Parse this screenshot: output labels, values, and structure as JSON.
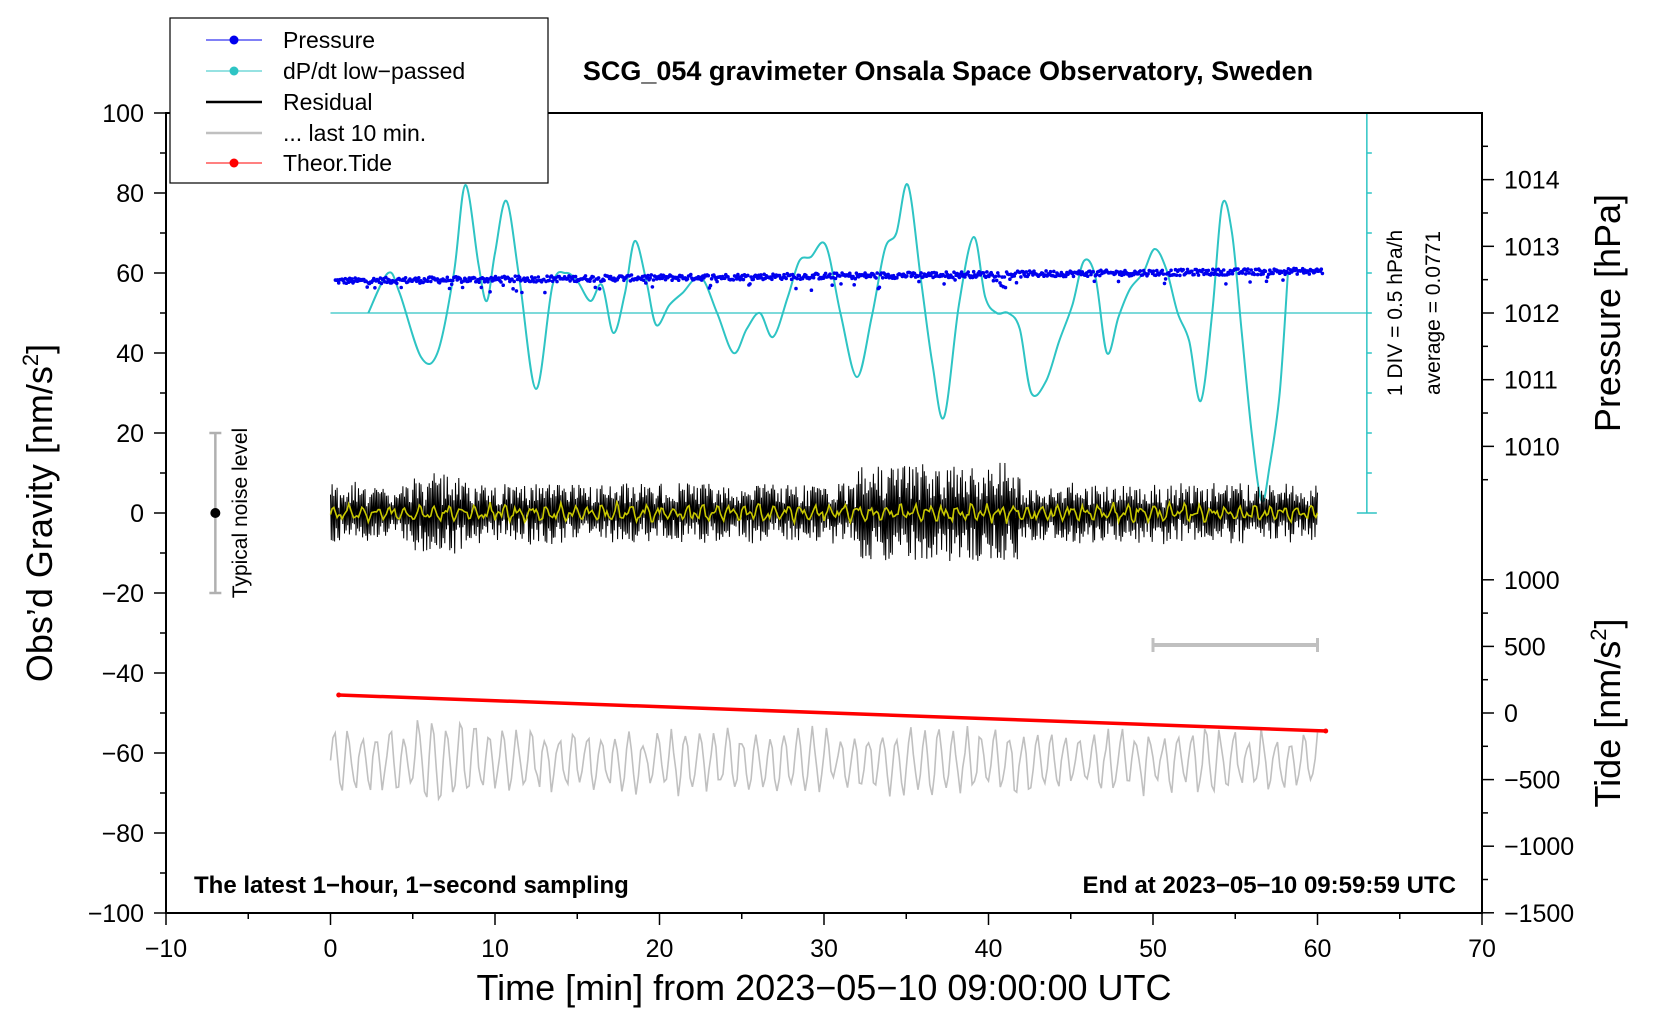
{
  "chart_data": {
    "type": "line",
    "title": "SCG_054 gravimeter Onsala Space Observatory, Sweden",
    "xlabel": "Time [min] from 2023−05−10 09:00:00 UTC",
    "xlim": [
      -10,
      70
    ],
    "xticks": [
      -10,
      0,
      10,
      20,
      30,
      40,
      50,
      60,
      70
    ],
    "xtick_labels": [
      "−10",
      "0",
      "10",
      "20",
      "30",
      "40",
      "50",
      "60",
      "70"
    ],
    "ylabel_left": "Obs’d Gravity [nm/s",
    "ylabel_left_sup": "2",
    "ylabel_left_close": "]",
    "ylim": [
      -100,
      100
    ],
    "yticks": [
      -100,
      -80,
      -60,
      -40,
      -20,
      0,
      20,
      40,
      60,
      80,
      100
    ],
    "ytick_labels": [
      "−100",
      "−80",
      "−60",
      "−40",
      "−20",
      "0",
      "20",
      "40",
      "60",
      "80",
      "100"
    ],
    "pressure_axis": {
      "label": "Pressure [hPa]",
      "ticks": [
        1010,
        1011,
        1012,
        1013,
        1014
      ],
      "tick_labels": [
        "1010",
        "1011",
        "1012",
        "1013",
        "1014"
      ],
      "ref": {
        "hpa": 1012,
        "gravity": 50
      },
      "gravity_per_hpa": 16.67
    },
    "tide_axis": {
      "label": "Tide [nm/s",
      "label_sup": "2",
      "label_close": "]",
      "ticks": [
        1000,
        500,
        0,
        -500,
        -1000,
        -1500
      ],
      "tick_labels": [
        "1000",
        "500",
        "0",
        "−500",
        "−1000",
        "−1500"
      ],
      "ref": {
        "tide": 0,
        "gravity": -50
      },
      "gravity_per_unit": 0.0333
    },
    "dpdt_scale": {
      "label_div": "1 DIV = 0.5 hPa/h",
      "label_avg": "average = 0.0771",
      "x": 63,
      "bottom": 0,
      "top": 100,
      "divisions": 10,
      "baseline": 50
    },
    "noise_bar": {
      "label": "Typical noise level",
      "x": -7,
      "low": -20,
      "high": 20,
      "center": 0
    },
    "last10_bar": {
      "x_start": 50,
      "x_end": 60,
      "y": -33
    },
    "series": [
      {
        "name": "dP/dt low−passed",
        "color": "#2ec4c4",
        "x": [
          2.3,
          3.5,
          4.2,
          5.5,
          6.5,
          7.5,
          8.2,
          9.0,
          9.5,
          10.0,
          10.7,
          11.5,
          12.5,
          13.5,
          14.3,
          15.0,
          15.8,
          16.5,
          17.2,
          17.9,
          18.5,
          19.2,
          19.8,
          20.6,
          21.4,
          22.5,
          23.5,
          24.5,
          25.3,
          26.1,
          26.9,
          27.8,
          28.5,
          29.2,
          30.1,
          31.0,
          32.0,
          32.9,
          33.7,
          34.4,
          35.1,
          35.9,
          36.6,
          37.3,
          38.2,
          39.1,
          39.8,
          40.5,
          41.2,
          41.9,
          42.6,
          43.5,
          44.3,
          45.1,
          45.8,
          46.5,
          47.2,
          47.9,
          48.6,
          49.4,
          50.1,
          50.8,
          51.5,
          52.2,
          52.9,
          53.6,
          54.2,
          54.8,
          55.4,
          56.0,
          56.6,
          57.1,
          57.7,
          58.2
        ],
        "values": [
          50,
          60,
          55,
          39,
          40,
          60,
          82,
          62,
          53,
          65,
          78,
          58,
          31,
          57,
          60,
          58,
          53,
          57,
          45,
          55,
          68,
          58,
          47,
          52,
          55,
          59,
          50,
          40,
          46,
          50,
          44,
          54,
          63,
          64,
          67,
          50,
          34,
          49,
          66,
          70,
          82,
          58,
          37,
          24,
          52,
          69,
          54,
          50,
          50,
          46,
          30,
          33,
          43,
          52,
          63,
          59,
          40,
          49,
          56,
          60,
          66,
          61,
          50,
          43,
          28,
          50,
          77,
          70,
          45,
          20,
          3,
          12,
          30,
          60
        ]
      },
      {
        "name": "Pressure",
        "color": "#0000ee",
        "x_start": 0.3,
        "x_end": 60.3,
        "y_start": 58,
        "y_end": 60.5
      },
      {
        "name": "Residual",
        "color": "#000000",
        "x_start": 0,
        "x_end": 60
      },
      {
        "name": "Residual (smoothed)",
        "color": "#c8c800",
        "x_start": 0,
        "x_end": 60
      },
      {
        "name": "... last 10 min.",
        "color": "#c0c0c0",
        "x_start": 0,
        "x_end": 60,
        "center": -62
      },
      {
        "name": "Theor.Tide",
        "color": "#ff0000",
        "x": [
          0.5,
          60.5
        ],
        "values": [
          -45.5,
          -54.5
        ]
      }
    ],
    "annotations": {
      "bottom_left": "The latest 1−hour, 1−second sampling",
      "bottom_right": "End at 2023−05−10 09:59:59 UTC"
    },
    "legend": {
      "position": "top-left",
      "entries": [
        {
          "label": "Pressure",
          "color": "#0000ee",
          "marker": true
        },
        {
          "label": "dP/dt low−passed",
          "color": "#2ec4c4",
          "marker": true
        },
        {
          "label": "Residual",
          "color": "#000000",
          "marker": false
        },
        {
          "label": "... last 10 min.",
          "color": "#c0c0c0",
          "marker": false
        },
        {
          "label": "Theor.Tide",
          "color": "#ff0000",
          "marker": true
        }
      ]
    }
  }
}
